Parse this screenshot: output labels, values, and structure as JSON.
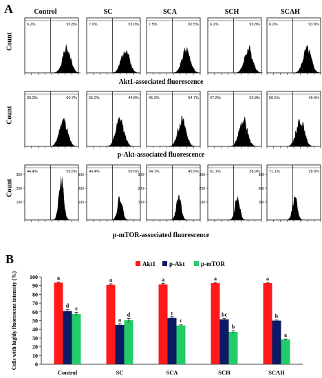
{
  "panel_a": {
    "letter": "A",
    "columns": [
      "Control",
      "SC",
      "SCA",
      "SCH",
      "SCAH"
    ],
    "y_label": "Count",
    "rows": [
      {
        "caption": "Akt1-associated fluorescence",
        "left_pct": [
          "6.2%",
          "7.0%",
          "7.5%",
          "6.2%",
          "6.2%"
        ],
        "right_pct": [
          "93.8%",
          "93.0%",
          "92.5%",
          "93.8%",
          "93.8%"
        ],
        "y_ticks": [],
        "peak_position": [
          0.78,
          0.72,
          0.74,
          0.76,
          0.75
        ]
      },
      {
        "caption": "p-Akt-associated fluorescence",
        "left_pct": [
          "39.3%",
          "55.2%",
          "45.3%",
          "47.2%",
          "50.6%"
        ],
        "right_pct": [
          "60.7%",
          "44.8%",
          "54.7%",
          "52.8%",
          "49.4%"
        ],
        "y_ticks": [],
        "peak_position": [
          0.72,
          0.62,
          0.66,
          0.66,
          0.62
        ]
      },
      {
        "caption": "p-mTOR-associated fluorescence",
        "left_pct": [
          "44.4%",
          "49.4%",
          "54.1%",
          "61.1%",
          "71.1%"
        ],
        "right_pct": [
          "55.6%",
          "50.6%",
          "45.9%",
          "38.9%",
          "28.9%"
        ],
        "y_ticks": [
          "300",
          "200",
          "100"
        ],
        "peak_position": [
          0.68,
          0.62,
          0.6,
          0.55,
          0.52
        ]
      }
    ]
  },
  "panel_b": {
    "letter": "B",
    "chart_data": {
      "type": "bar",
      "categories": [
        "Control",
        "SC",
        "SCA",
        "SCH",
        "SCAH"
      ],
      "series": [
        {
          "name": "Akt1",
          "color": "#ff1a1a",
          "values": [
            93.5,
            91.0,
            91.5,
            93.0,
            93.0
          ],
          "errors": [
            0.8,
            1.2,
            1.0,
            0.8,
            0.7
          ],
          "letters": [
            "a",
            "a",
            "a",
            "a",
            "a"
          ]
        },
        {
          "name": "p-Akt",
          "color": "#0d1a66",
          "values": [
            61.0,
            45.0,
            53.0,
            51.5,
            50.0
          ],
          "errors": [
            1.5,
            1.5,
            1.5,
            1.0,
            0.8
          ],
          "letters": [
            "d",
            "a",
            "c",
            "bc",
            "b"
          ]
        },
        {
          "name": "p-mTOR",
          "color": "#22cc66",
          "values": [
            57.5,
            50.5,
            44.5,
            37.0,
            28.5
          ],
          "errors": [
            2.0,
            2.0,
            1.0,
            1.5,
            0.5
          ],
          "letters": [
            "e",
            "d",
            "c",
            "b",
            "a"
          ]
        }
      ],
      "ylabel": "Cells with highly fluorescent intensity (%)",
      "ylim": [
        0,
        100
      ],
      "y_ticks": [
        0,
        10,
        20,
        30,
        40,
        50,
        60,
        70,
        80,
        90,
        100
      ],
      "legend_position": "top-center"
    }
  }
}
